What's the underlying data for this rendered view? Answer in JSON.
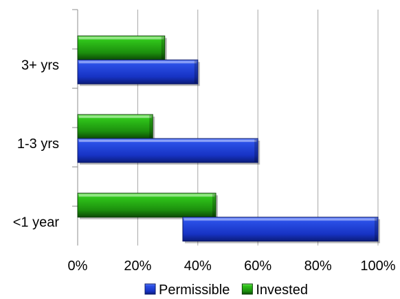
{
  "chart_data": {
    "type": "bar",
    "orientation": "horizontal",
    "style": "3d-beveled",
    "categories": [
      "3+ yrs",
      "1-3 yrs",
      "<1 year"
    ],
    "xlim": [
      0,
      100
    ],
    "x_ticks": [
      "0%",
      "20%",
      "40%",
      "60%",
      "80%",
      "100%"
    ],
    "grid": "vertical",
    "legend_position": "bottom",
    "series": [
      {
        "name": "Permissible",
        "color": "#1f3fd6",
        "values": [
          [
            0,
            40
          ],
          [
            0,
            60
          ],
          [
            35,
            100
          ]
        ]
      },
      {
        "name": "Invested",
        "color": "#22a00f",
        "values": [
          [
            0,
            29
          ],
          [
            0,
            25
          ],
          [
            0,
            46
          ]
        ]
      }
    ]
  }
}
